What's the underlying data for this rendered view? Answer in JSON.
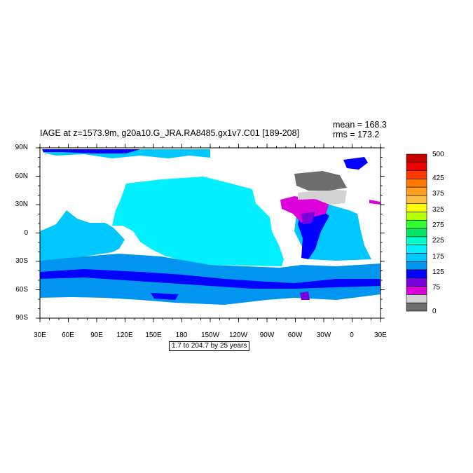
{
  "title": "IAGE at z=1573.9m, g20a10.G_JRA.RA8485.gx1v7.C01 [189-208]",
  "stats": {
    "mean": "mean = 168.3",
    "rms": "rms = 173.2"
  },
  "lat_labels": [
    "90N",
    "60N",
    "30N",
    "0",
    "30S",
    "60S",
    "90S"
  ],
  "lon_labels": [
    "30E",
    "60E",
    "90E",
    "120E",
    "150E",
    "180",
    "150W",
    "120W",
    "90W",
    "60W",
    "30W",
    "0",
    "30E"
  ],
  "contour_interval": "1.7 to 204.7 by 25 years",
  "colorbar": {
    "labels": [
      "500",
      "425",
      "375",
      "325",
      "275",
      "225",
      "175",
      "125",
      "75",
      "0"
    ],
    "colors": [
      "#c80000",
      "#ee0000",
      "#ff3800",
      "#ff7800",
      "#ff9f20",
      "#ffc040",
      "#ffff00",
      "#b4ff00",
      "#32ff32",
      "#00e664",
      "#00ffc8",
      "#00f0ff",
      "#00c8ff",
      "#0096f0",
      "#0000ff",
      "#7800dc",
      "#dc00dc",
      "#d2d2d2",
      "#6e6e6e"
    ]
  },
  "colors": {
    "land": "#ffffff",
    "pacific": "#00f0ff",
    "indian": "#00c8ff",
    "southern": "#0096f0",
    "arctic": "#00c8ff",
    "atlantic_deep": "#0000ff",
    "labrador": "#dc00dc",
    "nordic": "#6e6e6e",
    "subpolar": "#d2d2d2",
    "violet": "#7800dc"
  }
}
